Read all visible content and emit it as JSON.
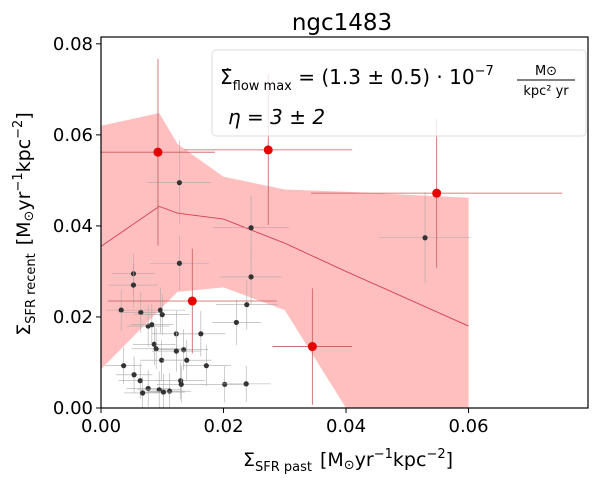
{
  "chart_data": {
    "type": "scatter",
    "title": "ngc1483",
    "xlabel": {
      "sigma": "Σ",
      "sub": "SFR past",
      "units_pre": "[M",
      "units_sun": "⊙",
      "units_yr": "yr",
      "units_exp1": "−1",
      "units_kpc": "kpc",
      "units_exp2": "−2",
      "units_post": "]"
    },
    "ylabel": {
      "sigma": "Σ",
      "sub": "SFR recent",
      "units_pre": "[M",
      "units_sun": "⊙",
      "units_yr": "yr",
      "units_exp1": "−1",
      "units_kpc": "kpc",
      "units_exp2": "−2",
      "units_post": "]"
    },
    "xlim": [
      0.0,
      0.0795
    ],
    "ylim": [
      0.0,
      0.0815
    ],
    "xticks": [
      0.0,
      0.02,
      0.04,
      0.06
    ],
    "xtick_labels": [
      "0.00",
      "0.02",
      "0.04",
      "0.06"
    ],
    "yticks": [
      0.0,
      0.02,
      0.04,
      0.06,
      0.08
    ],
    "ytick_labels": [
      "0.00",
      "0.02",
      "0.04",
      "0.06",
      "0.08"
    ],
    "legend": {
      "placement": "top-right",
      "line1_lhs": "Σ̇",
      "line1_sub": "flow max",
      "line1_eq": " = (1.3 ± 0.5) · 10",
      "line1_exp": "−7",
      "line1_frac_num": "M⊙",
      "line1_frac_den": "kpc² yr",
      "line2": "η = 3 ± 2"
    },
    "band": {
      "x": [
        0.0,
        0.0095,
        0.0125,
        0.02,
        0.03,
        0.04,
        0.06
      ],
      "lower": [
        0.0085,
        0.0215,
        0.0255,
        0.0265,
        0.0215,
        0.0,
        -0.021
      ],
      "upper": [
        0.062,
        0.0648,
        0.058,
        0.0508,
        0.048,
        0.0475,
        0.0462
      ],
      "color": "#ffbfbf"
    },
    "model_line": {
      "x": [
        0.0,
        0.0095,
        0.0125,
        0.02,
        0.03,
        0.04,
        0.06
      ],
      "y": [
        0.0355,
        0.0443,
        0.0428,
        0.0415,
        0.0362,
        0.03,
        0.018
      ],
      "color": "#d24050"
    },
    "red_points": {
      "color": "#e60000",
      "points": [
        {
          "x": 0.0093,
          "y": 0.0562,
          "xerr": 0.0093,
          "yerr": 0.0205
        },
        {
          "x": 0.0273,
          "y": 0.0567,
          "xerr": 0.0137,
          "yerr": 0.0165
        },
        {
          "x": 0.0548,
          "y": 0.0472,
          "xerr": 0.0205,
          "yerr": 0.0164
        },
        {
          "x": 0.0149,
          "y": 0.0235,
          "xerr": 0.0138,
          "yerr": 0.0115
        },
        {
          "x": 0.0345,
          "y": 0.0135,
          "xerr": 0.0065,
          "yerr": 0.0128
        }
      ]
    },
    "black_points": {
      "color": "#333333",
      "points": [
        {
          "x": 0.0128,
          "y": 0.0495,
          "xerr": 0.0052,
          "yerr": 0.0092
        },
        {
          "x": 0.0245,
          "y": 0.0396,
          "xerr": 0.0062,
          "yerr": 0.007
        },
        {
          "x": 0.0529,
          "y": 0.0374,
          "xerr": 0.0075,
          "yerr": 0.01
        },
        {
          "x": 0.0128,
          "y": 0.0318,
          "xerr": 0.0048,
          "yerr": 0.006
        },
        {
          "x": 0.0053,
          "y": 0.0295,
          "xerr": 0.0035,
          "yerr": 0.0045
        },
        {
          "x": 0.0053,
          "y": 0.027,
          "xerr": 0.004,
          "yerr": 0.0048
        },
        {
          "x": 0.0245,
          "y": 0.0288,
          "xerr": 0.005,
          "yerr": 0.006
        },
        {
          "x": 0.0033,
          "y": 0.0215,
          "xerr": 0.0025,
          "yerr": 0.0045
        },
        {
          "x": 0.0065,
          "y": 0.021,
          "xerr": 0.0035,
          "yerr": 0.0045
        },
        {
          "x": 0.0097,
          "y": 0.0215,
          "xerr": 0.004,
          "yerr": 0.005
        },
        {
          "x": 0.01,
          "y": 0.0205,
          "xerr": 0.0045,
          "yerr": 0.0045
        },
        {
          "x": 0.0238,
          "y": 0.0227,
          "xerr": 0.005,
          "yerr": 0.0055
        },
        {
          "x": 0.0077,
          "y": 0.018,
          "xerr": 0.0035,
          "yerr": 0.0045
        },
        {
          "x": 0.0083,
          "y": 0.0183,
          "xerr": 0.0035,
          "yerr": 0.0045
        },
        {
          "x": 0.0221,
          "y": 0.0188,
          "xerr": 0.004,
          "yerr": 0.005
        },
        {
          "x": 0.0123,
          "y": 0.0163,
          "xerr": 0.004,
          "yerr": 0.005
        },
        {
          "x": 0.0163,
          "y": 0.0163,
          "xerr": 0.004,
          "yerr": 0.005
        },
        {
          "x": 0.0087,
          "y": 0.014,
          "xerr": 0.0035,
          "yerr": 0.0045
        },
        {
          "x": 0.009,
          "y": 0.013,
          "xerr": 0.004,
          "yerr": 0.0045
        },
        {
          "x": 0.0135,
          "y": 0.0128,
          "xerr": 0.004,
          "yerr": 0.0045
        },
        {
          "x": 0.0123,
          "y": 0.0125,
          "xerr": 0.004,
          "yerr": 0.0045
        },
        {
          "x": 0.0099,
          "y": 0.0105,
          "xerr": 0.0035,
          "yerr": 0.0045
        },
        {
          "x": 0.014,
          "y": 0.0105,
          "xerr": 0.004,
          "yerr": 0.0045
        },
        {
          "x": 0.0037,
          "y": 0.0093,
          "xerr": 0.003,
          "yerr": 0.004
        },
        {
          "x": 0.0172,
          "y": 0.0093,
          "xerr": 0.004,
          "yerr": 0.0045
        },
        {
          "x": 0.0064,
          "y": 0.006,
          "xerr": 0.0035,
          "yerr": 0.004
        },
        {
          "x": 0.0054,
          "y": 0.0073,
          "xerr": 0.003,
          "yerr": 0.004
        },
        {
          "x": 0.013,
          "y": 0.006,
          "xerr": 0.004,
          "yerr": 0.004
        },
        {
          "x": 0.0131,
          "y": 0.0052,
          "xerr": 0.004,
          "yerr": 0.004
        },
        {
          "x": 0.0077,
          "y": 0.0043,
          "xerr": 0.0035,
          "yerr": 0.004
        },
        {
          "x": 0.0095,
          "y": 0.004,
          "xerr": 0.0035,
          "yerr": 0.004
        },
        {
          "x": 0.0112,
          "y": 0.0037,
          "xerr": 0.0035,
          "yerr": 0.004
        },
        {
          "x": 0.0102,
          "y": 0.0035,
          "xerr": 0.0035,
          "yerr": 0.004
        },
        {
          "x": 0.0068,
          "y": 0.0033,
          "xerr": 0.003,
          "yerr": 0.0035
        },
        {
          "x": 0.0202,
          "y": 0.0052,
          "xerr": 0.004,
          "yerr": 0.004
        },
        {
          "x": 0.0237,
          "y": 0.0053,
          "xerr": 0.004,
          "yerr": 0.004
        }
      ]
    }
  }
}
